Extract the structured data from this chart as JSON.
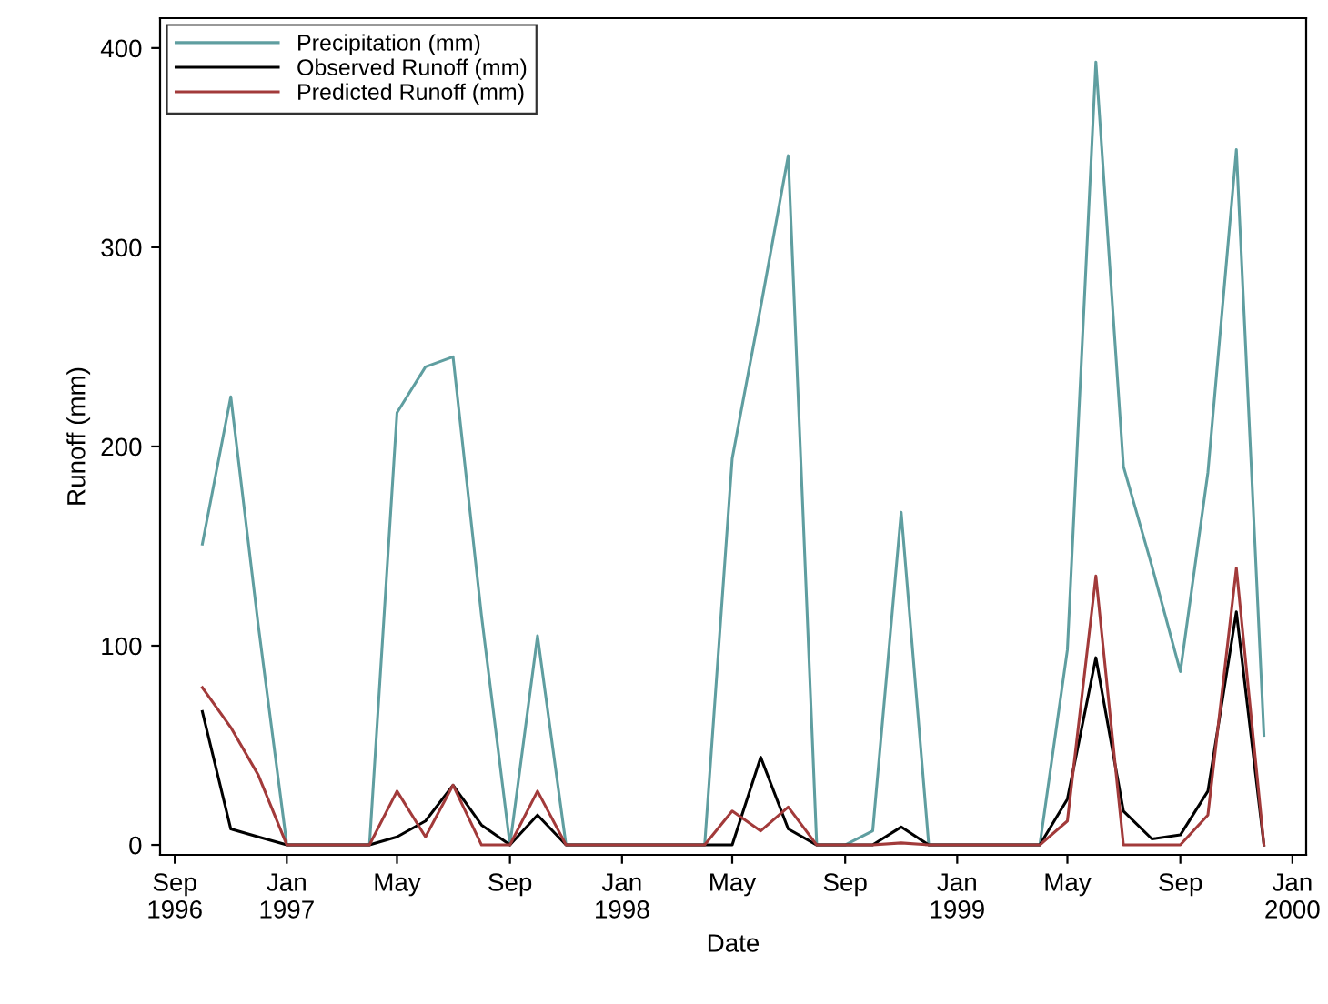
{
  "chart_data": {
    "type": "line",
    "xlabel": "Date",
    "ylabel": "Runoff (mm)",
    "x": [
      "1996-10",
      "1996-11",
      "1996-12",
      "1997-01",
      "1997-02",
      "1997-03",
      "1997-04",
      "1997-05",
      "1997-06",
      "1997-07",
      "1997-08",
      "1997-09",
      "1997-10",
      "1997-11",
      "1997-12",
      "1998-01",
      "1998-02",
      "1998-03",
      "1998-04",
      "1998-05",
      "1998-06",
      "1998-07",
      "1998-08",
      "1998-09",
      "1998-10",
      "1998-11",
      "1998-12",
      "1999-01",
      "1999-02",
      "1999-03",
      "1999-04",
      "1999-05",
      "1999-06",
      "1999-07",
      "1999-08",
      "1999-09",
      "1999-10",
      "1999-11",
      "1999-12"
    ],
    "series": [
      {
        "name": "Precipitation (mm)",
        "color": "#5f9ea0",
        "values": [
          151,
          225,
          110,
          0,
          0,
          0,
          0,
          217,
          240,
          245,
          115,
          0,
          105,
          0,
          0,
          0,
          0,
          0,
          0,
          194,
          270,
          346,
          0,
          0,
          7,
          167,
          0,
          0,
          0,
          0,
          0,
          98,
          393,
          190,
          140,
          87,
          187,
          349,
          55
        ]
      },
      {
        "name": "Observed Runoff (mm)",
        "color": "#000000",
        "values": [
          67,
          8,
          4,
          0,
          0,
          0,
          0,
          4,
          12,
          30,
          10,
          0,
          15,
          0,
          0,
          0,
          0,
          0,
          0,
          0,
          44,
          8,
          0,
          0,
          0,
          9,
          0,
          0,
          0,
          0,
          0,
          23,
          94,
          17,
          3,
          5,
          27,
          117,
          0
        ]
      },
      {
        "name": "Predicted Runoff (mm)",
        "color": "#a23a3a",
        "values": [
          79,
          59,
          35,
          0,
          0,
          0,
          0,
          27,
          4,
          30,
          0,
          0,
          27,
          0,
          0,
          0,
          0,
          0,
          0,
          17,
          7,
          19,
          0,
          0,
          0,
          1,
          0,
          0,
          0,
          0,
          0,
          12,
          135,
          0,
          0,
          0,
          15,
          139,
          0
        ]
      }
    ],
    "xlim": [
      "1996-08-16",
      "2000-01-16"
    ],
    "xticks": [
      {
        "value": "1996-09",
        "label": "Sep\n1996"
      },
      {
        "value": "1997-01",
        "label": "Jan\n1997"
      },
      {
        "value": "1997-05",
        "label": "May"
      },
      {
        "value": "1997-09",
        "label": "Sep"
      },
      {
        "value": "1998-01",
        "label": "Jan\n1998"
      },
      {
        "value": "1998-05",
        "label": "May"
      },
      {
        "value": "1998-09",
        "label": "Sep"
      },
      {
        "value": "1999-01",
        "label": "Jan\n1999"
      },
      {
        "value": "1999-05",
        "label": "May"
      },
      {
        "value": "1999-09",
        "label": "Sep"
      },
      {
        "value": "2000-01",
        "label": "Jan\n2000"
      }
    ],
    "ylim": [
      -5,
      415
    ],
    "yticks": [
      0,
      100,
      200,
      300,
      400
    ],
    "legend": "top left",
    "grid": false,
    "marker": "none",
    "line_style": "solid"
  }
}
